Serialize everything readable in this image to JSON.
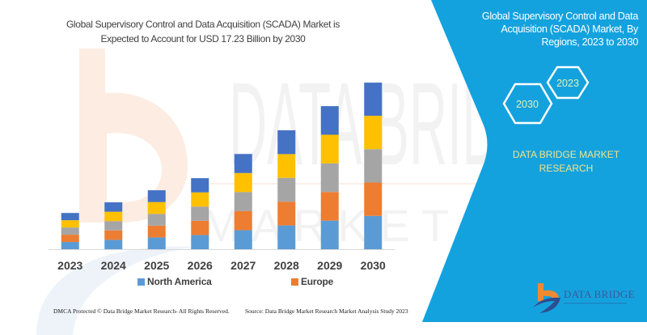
{
  "header": {
    "title_lines": [
      "Global Supervisory Control and Data Acquisition (SCADA) Market is",
      "Expected to Account for USD 17.23 Billion by 2030"
    ]
  },
  "side_panel": {
    "background": "#14a2de",
    "title_lines": [
      "Global Supervisory Control and Data",
      "Acquisition (SCADA) Market, By",
      "Regions, 2023 to 2030"
    ],
    "hexagons": [
      {
        "label": "2023"
      },
      {
        "label": "2030"
      }
    ],
    "brand_lines": [
      "DATA BRIDGE MARKET",
      "RESEARCH"
    ],
    "logo": {
      "text": "DATA BRIDGE",
      "icon": "data-bridge-logo-icon"
    }
  },
  "watermark": {
    "main": "DATA BRIDGE",
    "sub": "MARKET RESEARCH"
  },
  "footer": {
    "copyright": "DMCA Protected © Data Bridge Market Research- All Rights Reserved.",
    "source": "Source: Data Bridge Market Research  Market Analysis Study 2023"
  },
  "chart_data": {
    "type": "bar",
    "stacked": true,
    "title": "Global Supervisory Control and Data Acquisition (SCADA) Market is Expected to Account for USD 17.23 Billion by 2030",
    "xlabel": "",
    "ylabel": "",
    "unit": "USD Billion",
    "values_estimated": true,
    "categories": [
      "2023",
      "2024",
      "2025",
      "2026",
      "2027",
      "2028",
      "2029",
      "2030"
    ],
    "series": [
      {
        "name": "North America",
        "color": "#5b9bd5",
        "values": [
          0.75,
          0.97,
          1.22,
          1.47,
          1.97,
          2.46,
          2.96,
          3.45
        ]
      },
      {
        "name": "Europe",
        "color": "#ed7d31",
        "values": [
          0.75,
          0.97,
          1.22,
          1.47,
          1.97,
          2.46,
          2.96,
          3.45
        ]
      },
      {
        "name": "",
        "color": "#a5a5a5",
        "values": [
          0.75,
          0.97,
          1.22,
          1.47,
          1.97,
          2.46,
          2.96,
          3.45
        ]
      },
      {
        "name": "",
        "color": "#ffc000",
        "values": [
          0.75,
          0.97,
          1.22,
          1.47,
          1.97,
          2.46,
          2.96,
          3.45
        ]
      },
      {
        "name": "",
        "color": "#4472c4",
        "values": [
          0.75,
          0.97,
          1.22,
          1.47,
          1.97,
          2.46,
          2.96,
          3.43
        ]
      }
    ],
    "ylim": [
      0,
      20
    ],
    "y_axis_visible": false,
    "grid": false,
    "legend": {
      "position": "bottom",
      "entries": [
        "North America",
        "Europe"
      ]
    }
  }
}
